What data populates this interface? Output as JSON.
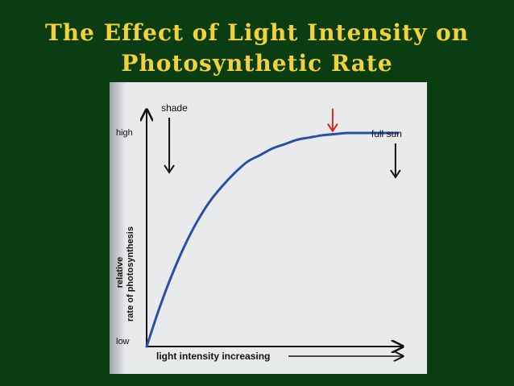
{
  "slide": {
    "title_line1": "The Effect of Light Intensity on",
    "title_line2": "Photosynthetic Rate",
    "background_color": "#0b3d12",
    "title_color": "#f2d13c"
  },
  "chart_data": {
    "type": "line",
    "title": "",
    "xlabel": "light intensity increasing",
    "ylabel_line1": "relative",
    "ylabel_line2": "rate of photosynthesis",
    "y_tick_high": "high",
    "y_tick_low": "low",
    "x": [
      0,
      0.05,
      0.1,
      0.15,
      0.2,
      0.25,
      0.3,
      0.35,
      0.4,
      0.45,
      0.5,
      0.55,
      0.6,
      0.65,
      0.7,
      0.75,
      0.8,
      0.85,
      0.9,
      0.95,
      1.0
    ],
    "series": [
      {
        "values": [
          0.0,
          0.17,
          0.32,
          0.45,
          0.56,
          0.65,
          0.72,
          0.78,
          0.83,
          0.86,
          0.89,
          0.91,
          0.93,
          0.94,
          0.95,
          0.955,
          0.96,
          0.96,
          0.96,
          0.96,
          0.96
        ]
      }
    ],
    "xlim": [
      0,
      1
    ],
    "ylim": [
      0,
      1
    ],
    "annotations": [
      {
        "label": "shade",
        "x": 0.09,
        "color": "#111111"
      },
      {
        "label": "",
        "x": 0.74,
        "color": "#d8251c"
      },
      {
        "label": "full sun",
        "x": 0.99,
        "color": "#111111"
      }
    ],
    "line_color": "#2a4fa8",
    "grid": false
  }
}
